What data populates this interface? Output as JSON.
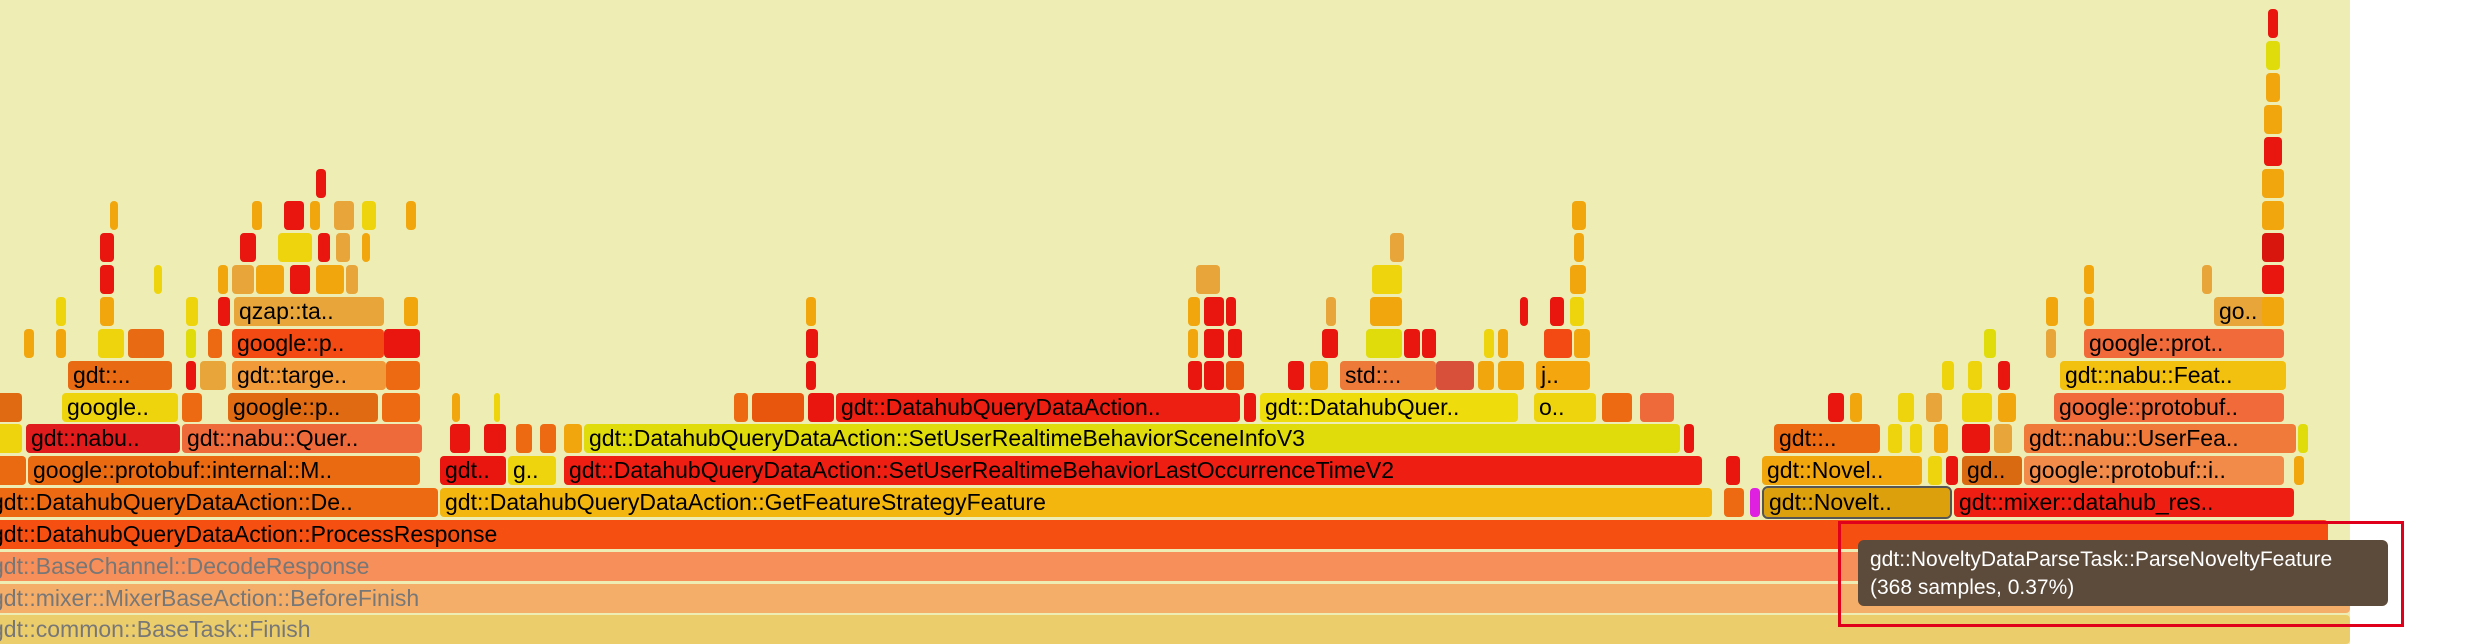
{
  "colors": {
    "background": "#eeeeb4",
    "tooltip_bg": "#5c4a3a",
    "highlight_border": "#e0001c"
  },
  "flamegraph": {
    "frames": [
      {
        "label": "gdt::common::BaseTask::Finish",
        "color": "#eccd6c",
        "faded": true
      },
      {
        "label": "gdt::mixer::MixerBaseAction::BeforeFinish",
        "color": "#f5ae6a",
        "faded": true
      },
      {
        "label": "gdt::BaseChannel::DecodeResponse",
        "color": "#f78f5a",
        "faded": true
      },
      {
        "label": "gdt::DatahubQueryDataAction::ProcessResponse",
        "color": "#f54f12"
      },
      {
        "label": "gdt::DatahubQueryDataAction::De..",
        "color": "#ee6a12"
      },
      {
        "label": "gdt::DatahubQueryDataAction::GetFeatureStrategyFeature",
        "color": "#f2b60e"
      },
      {
        "label": "gdt::Novelt..",
        "color": "#dca00c",
        "selected": true
      },
      {
        "label": "gdt::mixer::datahub_res..",
        "color": "#ee1f12"
      },
      {
        "label": "google::protobuf::internal::M..",
        "color": "#ea6a12"
      },
      {
        "label": "gdt..",
        "color": "#e8160e"
      },
      {
        "label": "g..",
        "color": "#eed40c"
      },
      {
        "label": "gdt::DatahubQueryDataAction::SetUserRealtimeBehaviorLastOccurrenceTimeV2",
        "color": "#ee1f12"
      },
      {
        "label": "gdt::Novel..",
        "color": "#f2a60e"
      },
      {
        "label": "gd..",
        "color": "#d96a12"
      },
      {
        "label": "google::protobuf::i..",
        "color": "#f28a4a"
      },
      {
        "label": "gdt::nabu..",
        "color": "#e01c1c"
      },
      {
        "label": "gdt::nabu::Quer..",
        "color": "#ef6a3a"
      },
      {
        "label": "gdt::DatahubQueryDataAction::SetUserRealtimeBehaviorSceneInfoV3",
        "color": "#e0dc0c"
      },
      {
        "label": "gdt::..",
        "color": "#ec6a12"
      },
      {
        "label": "gdt::nabu::UserFea..",
        "color": "#f07a3a"
      },
      {
        "label": "google..",
        "color": "#eed40c"
      },
      {
        "label": "google::p..",
        "color": "#e06a12"
      },
      {
        "label": "gdt::DatahubQueryDataAction..",
        "color": "#ec1f12"
      },
      {
        "label": "gdt::DatahubQuer..",
        "color": "#eedc0c"
      },
      {
        "label": "o..",
        "color": "#eed40c"
      },
      {
        "label": "google::protobuf..",
        "color": "#f06a3a"
      },
      {
        "label": "gdt::..",
        "color": "#e86a12"
      },
      {
        "label": "gdt::targe..",
        "color": "#f09a3a"
      },
      {
        "label": "std::..",
        "color": "#ee7a3a"
      },
      {
        "label": "j..",
        "color": "#f4a60e"
      },
      {
        "label": "gdt::nabu::Feat..",
        "color": "#f2c00e"
      },
      {
        "label": "google::p..",
        "color": "#f24a12"
      },
      {
        "label": "google::prot..",
        "color": "#f06a3a"
      },
      {
        "label": "qzap::ta..",
        "color": "#e8a63a"
      },
      {
        "label": "go..",
        "color": "#e8a63a"
      }
    ]
  },
  "tooltip": {
    "line1": "gdt::NoveltyDataParseTask::ParseNoveltyFeature",
    "line2": "(368 samples, 0.37%)"
  }
}
